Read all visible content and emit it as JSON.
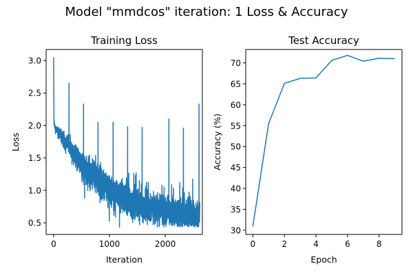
{
  "figure": {
    "suptitle": "Model \"mmdcos\" iteration: 1 Loss & Accuracy"
  },
  "chart_data": [
    {
      "type": "line",
      "title": "Training Loss",
      "xlabel": "Iteration",
      "ylabel": "Loss",
      "xlim": [
        -135,
        2665
      ],
      "ylim": [
        0.32,
        3.17
      ],
      "xticks": [
        0,
        1000,
        2000
      ],
      "xtick_labels": [
        "0",
        "1000",
        "2000"
      ],
      "yticks": [
        0.5,
        1.0,
        1.5,
        2.0,
        2.5,
        3.0
      ],
      "ytick_labels": [
        "0.5",
        "1.0",
        "1.5",
        "2.0",
        "2.5",
        "3.0"
      ],
      "grid": false,
      "color": "#1f77b4",
      "num_points": 2620,
      "series": [
        {
          "x": [
            0,
            5,
            10,
            20,
            40,
            60,
            80,
            100,
            150,
            200,
            250,
            270,
            275,
            280,
            300,
            350,
            400,
            450,
            500,
            530,
            535,
            540,
            600,
            650,
            700,
            750,
            790,
            795,
            800,
            850,
            900,
            950,
            1000,
            1050,
            1060,
            1065,
            1070,
            1100,
            1150,
            1200,
            1250,
            1300,
            1320,
            1325,
            1330,
            1350,
            1400,
            1450,
            1500,
            1550,
            1580,
            1585,
            1590,
            1600,
            1650,
            1700,
            1750,
            1800,
            1850,
            1900,
            1950,
            2000,
            2050,
            2060,
            2065,
            2070,
            2100,
            2150,
            2200,
            2250,
            2300,
            2320,
            2325,
            2330,
            2350,
            2400,
            2450,
            2500,
            2550,
            2590,
            2600,
            2605,
            2610,
            2619
          ],
          "y": [
            3.05,
            2.1,
            2.02,
            1.98,
            1.95,
            1.93,
            1.9,
            1.87,
            1.82,
            1.77,
            1.72,
            1.7,
            2.65,
            1.68,
            1.64,
            1.58,
            1.52,
            1.47,
            1.41,
            1.38,
            2.33,
            1.36,
            1.31,
            1.28,
            1.23,
            1.19,
            1.16,
            2.05,
            1.15,
            1.12,
            1.08,
            1.05,
            1.02,
            0.99,
            0.98,
            2.05,
            0.97,
            0.95,
            0.93,
            0.91,
            0.89,
            0.87,
            0.86,
            1.98,
            0.85,
            0.84,
            0.82,
            0.8,
            0.79,
            0.78,
            0.77,
            1.97,
            0.76,
            0.75,
            0.74,
            0.73,
            0.72,
            0.71,
            0.7,
            0.7,
            0.69,
            0.68,
            0.68,
            0.67,
            2.1,
            0.67,
            0.66,
            0.66,
            0.65,
            0.65,
            0.64,
            0.64,
            1.96,
            0.64,
            0.63,
            0.63,
            0.63,
            0.62,
            0.62,
            0.62,
            0.61,
            2.33,
            0.61,
            0.61
          ]
        }
      ]
    },
    {
      "type": "line",
      "title": "Test Accuracy",
      "xlabel": "Epoch",
      "ylabel": "Accuracy (%)",
      "xlim": [
        -0.45,
        9.45
      ],
      "ylim": [
        29.0,
        73.2
      ],
      "xticks": [
        0,
        2,
        4,
        6,
        8
      ],
      "xtick_labels": [
        "0",
        "2",
        "4",
        "6",
        "8"
      ],
      "yticks": [
        30,
        35,
        40,
        45,
        50,
        55,
        60,
        65,
        70
      ],
      "ytick_labels": [
        "30",
        "35",
        "40",
        "45",
        "50",
        "55",
        "60",
        "65",
        "70"
      ],
      "grid": false,
      "color": "#1f77b4",
      "series": [
        {
          "x": [
            0,
            1,
            2,
            3,
            4,
            5,
            6,
            7,
            8,
            9
          ],
          "y": [
            30.9,
            55.5,
            65.1,
            66.3,
            66.4,
            70.6,
            71.8,
            70.4,
            71.1,
            71.0
          ]
        }
      ]
    }
  ]
}
